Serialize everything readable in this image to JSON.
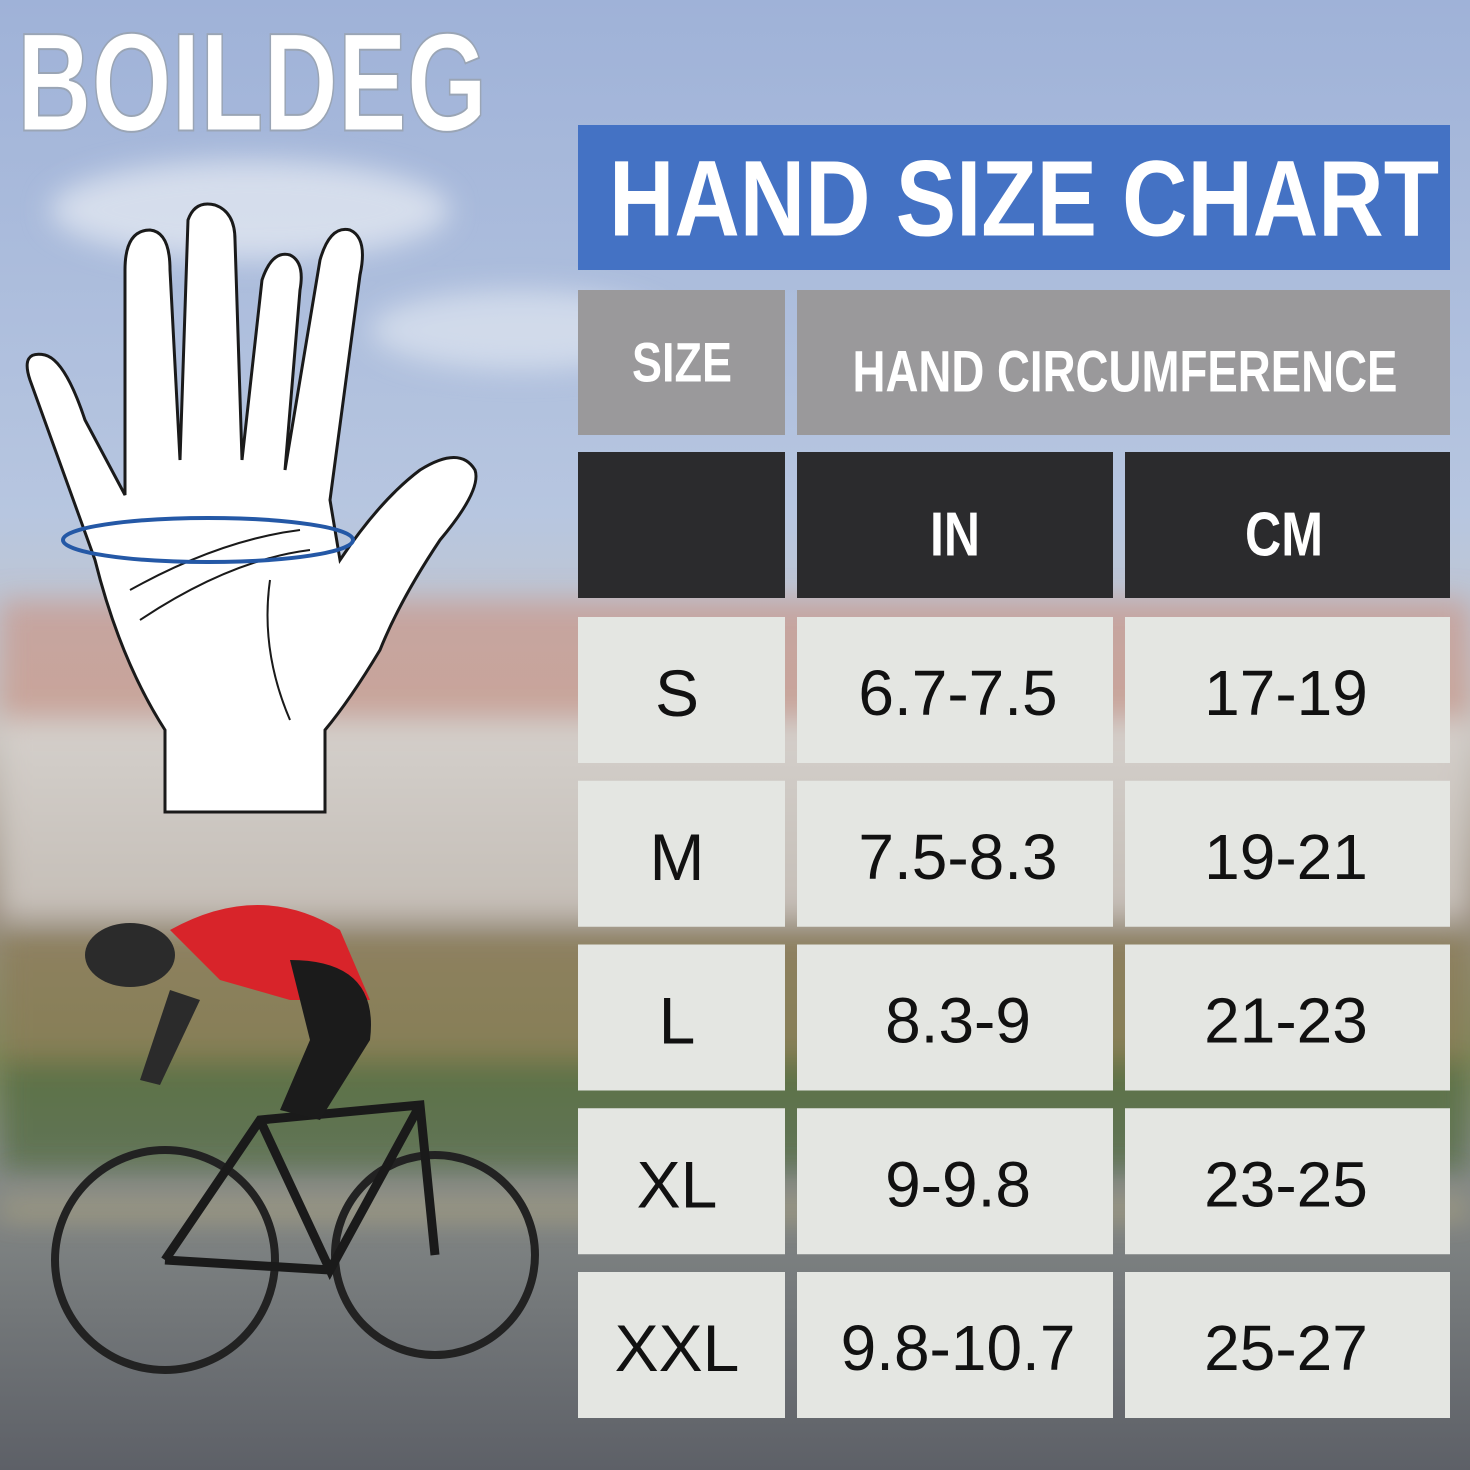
{
  "brand": "BOILDEG",
  "title": "HAND SIZE CHART",
  "header": {
    "size": "SIZE",
    "circumference": "HAND CIRCUMFERENCE",
    "in": "IN",
    "cm": "CM"
  },
  "table": {
    "rows": [
      [
        "S",
        "6.7-7.5",
        "17-19"
      ],
      [
        "M",
        "7.5-8.3",
        "19-21"
      ],
      [
        "L",
        "8.3-9",
        "21-23"
      ],
      [
        "XL",
        "9-9.8",
        "23-25"
      ],
      [
        "XXL",
        "9.8-10.7",
        "25-27"
      ]
    ]
  }
}
